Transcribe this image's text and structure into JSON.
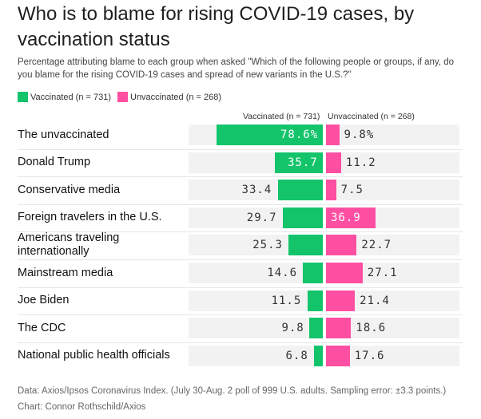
{
  "title": "Who is to blame for rising COVID-19 cases, by vaccination status",
  "subtitle": "Percentage attributing blame to each group when asked \"Which of the following people or groups, if any, do you blame for the rising COVID-19 cases and spread of new variants in the U.S.?\"",
  "legend": [
    {
      "label": "Vaccinated (n = 731)",
      "color": "#13c46b"
    },
    {
      "label": "Unvaccinated (n = 268)",
      "color": "#ff4fa3"
    }
  ],
  "column_headers": {
    "vaccinated": "Vaccinated (n = 731)",
    "unvaccinated": "Unvaccinated (n = 268)"
  },
  "footer": "Data: Axios/Ipsos Coronavirus Index. (July 30-Aug. 2 poll of 999 U.S. adults. Sampling error: ±3.3 points.) Chart: Connor Rothschild/Axios",
  "chart_data": {
    "type": "bar",
    "orientation": "horizontal-diverging",
    "categories": [
      "The unvaccinated",
      "Donald Trump",
      "Conservative media",
      "Foreign travelers in the U.S.",
      "Americans traveling internationally",
      "Mainstream media",
      "Joe Biden",
      "The CDC",
      "National public health officials"
    ],
    "series": [
      {
        "name": "Vaccinated (n = 731)",
        "color": "#13c46b",
        "values": [
          78.6,
          35.7,
          33.4,
          29.7,
          25.3,
          14.6,
          11.5,
          9.8,
          6.8
        ],
        "labels": [
          "78.6%",
          "35.7",
          "33.4",
          "29.7",
          "25.3",
          "14.6",
          "11.5",
          "9.8",
          "6.8"
        ]
      },
      {
        "name": "Unvaccinated (n = 268)",
        "color": "#ff4fa3",
        "values": [
          9.8,
          11.2,
          7.5,
          36.9,
          22.7,
          27.1,
          21.4,
          18.6,
          17.6
        ],
        "labels": [
          "9.8%",
          "11.2",
          "7.5",
          "36.9",
          "22.7",
          "27.1",
          "21.4",
          "18.6",
          "17.6"
        ]
      }
    ],
    "xlim": [
      0,
      100
    ],
    "grid": false
  }
}
